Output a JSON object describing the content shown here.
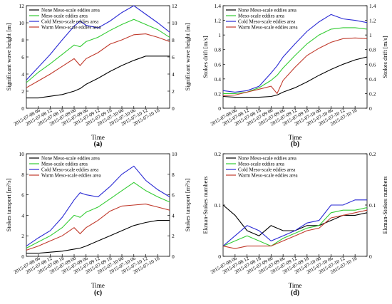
{
  "figure": {
    "tick_labels": [
      "2015-07-08 06",
      "2015-07-08 12",
      "2015-07-08 18",
      "2015-07-09 00",
      "2015-07-09 06",
      "2015-07-09 12",
      "2015-07-09 18",
      "2015-07-10 00",
      "2015-07-10 06",
      "2015-07-10 12",
      "2015-07-10 18"
    ],
    "colors": {
      "none": "#000000",
      "meso": "#33cc33",
      "cold": "#2a2ad4",
      "warm": "#c0392b"
    }
  },
  "chart_data": [
    {
      "type": "line",
      "panel_label": "(a)",
      "xlabel": "Time",
      "ylabel_left": "Significant wave height [m]",
      "ylabel_right": "Significant wave height [m]",
      "xlim": [
        "2015-07-08 00",
        "2015-07-11 00"
      ],
      "ylim": [
        0,
        12
      ],
      "y_ticks": [
        "0",
        "2",
        "4",
        "6",
        "8",
        "10",
        "12"
      ],
      "legend": "top-left",
      "x": [
        "2015-07-08 00",
        "2015-07-08 06",
        "2015-07-08 12",
        "2015-07-08 18",
        "2015-07-09 00",
        "2015-07-09 03",
        "2015-07-09 06",
        "2015-07-09 12",
        "2015-07-09 18",
        "2015-07-10 00",
        "2015-07-10 06",
        "2015-07-10 12",
        "2015-07-10 18",
        "2015-07-11 00"
      ],
      "series": [
        {
          "name": "None Meso-scale eddies area",
          "color": "#000000",
          "values": [
            1.2,
            1.2,
            1.4,
            1.6,
            2.0,
            2.3,
            2.8,
            3.5,
            4.3,
            5.0,
            5.6,
            6.1,
            6.1,
            6.1
          ]
        },
        {
          "name": "Meso-scale eddies area",
          "color": "#33cc33",
          "values": [
            3.0,
            4.2,
            5.2,
            6.3,
            7.4,
            7.2,
            7.8,
            8.3,
            9.1,
            9.8,
            10.4,
            9.8,
            9.2,
            8.3
          ]
        },
        {
          "name": "Cold Meso-scale eddies area",
          "color": "#2a2ad4",
          "values": [
            3.3,
            4.8,
            6.3,
            8.0,
            9.6,
            10.2,
            9.7,
            9.4,
            10.2,
            11.2,
            12.0,
            11.0,
            10.0,
            8.9
          ]
        },
        {
          "name": "Warm Meso-scale eddies area",
          "color": "#c0392b",
          "values": [
            2.4,
            3.2,
            4.0,
            4.9,
            5.8,
            5.0,
            5.8,
            6.5,
            7.5,
            8.0,
            8.6,
            8.7,
            8.3,
            7.8
          ]
        }
      ]
    },
    {
      "type": "line",
      "panel_label": "(b)",
      "xlabel": "Time",
      "ylabel_left": "Stokes drift [m/s]",
      "ylabel_right": "Stokes drift [m/s]",
      "xlim": [
        "2015-07-08 00",
        "2015-07-11 00"
      ],
      "ylim": [
        0,
        1.4
      ],
      "y_ticks": [
        "0",
        "0.2",
        "0.4",
        "0.6",
        "0.8",
        "1",
        "1.2",
        "1.4"
      ],
      "legend": "top-left",
      "x": [
        "2015-07-08 00",
        "2015-07-08 06",
        "2015-07-08 12",
        "2015-07-08 18",
        "2015-07-09 00",
        "2015-07-09 03",
        "2015-07-09 06",
        "2015-07-09 12",
        "2015-07-09 18",
        "2015-07-10 00",
        "2015-07-10 06",
        "2015-07-10 12",
        "2015-07-10 18",
        "2015-07-11 00"
      ],
      "series": [
        {
          "name": "None Meso-scale eddies area",
          "color": "#000000",
          "values": [
            0.16,
            0.15,
            0.15,
            0.15,
            0.16,
            0.18,
            0.22,
            0.28,
            0.36,
            0.45,
            0.53,
            0.6,
            0.66,
            0.7
          ]
        },
        {
          "name": "Meso-scale eddies area",
          "color": "#33cc33",
          "values": [
            0.2,
            0.2,
            0.22,
            0.28,
            0.38,
            0.45,
            0.55,
            0.72,
            0.88,
            1.0,
            1.08,
            1.1,
            1.1,
            1.08
          ]
        },
        {
          "name": "Cold Meso-scale eddies area",
          "color": "#2a2ad4",
          "values": [
            0.24,
            0.22,
            0.24,
            0.3,
            0.48,
            0.58,
            0.7,
            0.88,
            1.05,
            1.18,
            1.28,
            1.22,
            1.2,
            1.17
          ]
        },
        {
          "name": "Warm Meso-scale eddies area",
          "color": "#c0392b",
          "values": [
            0.17,
            0.18,
            0.22,
            0.26,
            0.3,
            0.2,
            0.38,
            0.56,
            0.72,
            0.82,
            0.9,
            0.95,
            0.96,
            0.95
          ]
        }
      ]
    },
    {
      "type": "line",
      "panel_label": "(c)",
      "xlabel": "Time",
      "ylabel_left": "Stokes tansport [m²/s]",
      "ylabel_right": "Stokes tansport [m²/s]",
      "xlim": [
        "2015-07-08 00",
        "2015-07-11 00"
      ],
      "ylim": [
        0,
        10
      ],
      "y_ticks": [
        "0",
        "2",
        "4",
        "6",
        "8",
        "10"
      ],
      "legend": "top-left",
      "x": [
        "2015-07-08 00",
        "2015-07-08 06",
        "2015-07-08 12",
        "2015-07-08 18",
        "2015-07-09 00",
        "2015-07-09 03",
        "2015-07-09 06",
        "2015-07-09 12",
        "2015-07-09 18",
        "2015-07-10 00",
        "2015-07-10 06",
        "2015-07-10 12",
        "2015-07-10 18",
        "2015-07-11 00"
      ],
      "series": [
        {
          "name": "None Meso-scale eddies area",
          "color": "#000000",
          "values": [
            0.3,
            0.3,
            0.4,
            0.5,
            0.7,
            0.8,
            1.0,
            1.5,
            2.0,
            2.5,
            3.0,
            3.3,
            3.5,
            3.5
          ]
        },
        {
          "name": "Meso-scale eddies area",
          "color": "#33cc33",
          "values": [
            0.8,
            1.4,
            2.0,
            2.8,
            4.0,
            3.8,
            4.3,
            4.8,
            5.6,
            6.4,
            7.2,
            6.4,
            5.8,
            5.3
          ]
        },
        {
          "name": "Cold Meso-scale eddies area",
          "color": "#2a2ad4",
          "values": [
            1.0,
            1.8,
            2.5,
            3.8,
            5.5,
            6.2,
            6.0,
            5.8,
            6.8,
            8.0,
            8.8,
            7.4,
            6.5,
            5.8
          ]
        },
        {
          "name": "Warm Meso-scale eddies area",
          "color": "#c0392b",
          "values": [
            0.6,
            1.0,
            1.5,
            2.0,
            2.8,
            2.2,
            2.8,
            3.5,
            4.4,
            4.9,
            5.0,
            5.1,
            4.8,
            4.5
          ]
        }
      ]
    },
    {
      "type": "line",
      "panel_label": "(d)",
      "xlabel": "Time",
      "ylabel_left": "Ekman-Stokes numbers",
      "ylabel_right": "Ekman-Stokes numbers",
      "xlim": [
        "2015-07-08 00",
        "2015-07-11 00"
      ],
      "ylim": [
        0,
        0.2
      ],
      "y_ticks": [
        "0",
        "0.1",
        "0.2"
      ],
      "legend": "top-left",
      "x": [
        "2015-07-08 00",
        "2015-07-08 06",
        "2015-07-08 12",
        "2015-07-08 18",
        "2015-07-09 00",
        "2015-07-09 06",
        "2015-07-09 12",
        "2015-07-09 18",
        "2015-07-10 00",
        "2015-07-10 06",
        "2015-07-10 12",
        "2015-07-10 18",
        "2015-07-11 00"
      ],
      "series": [
        {
          "name": "None Meso-scale eddies area",
          "color": "#000000",
          "values": [
            0.1,
            0.08,
            0.05,
            0.04,
            0.06,
            0.05,
            0.05,
            0.06,
            0.06,
            0.07,
            0.08,
            0.08,
            0.085
          ]
        },
        {
          "name": "Meso-scale eddies area",
          "color": "#33cc33",
          "values": [
            0.02,
            0.03,
            0.04,
            0.03,
            0.02,
            0.035,
            0.045,
            0.055,
            0.06,
            0.085,
            0.09,
            0.09,
            0.095
          ]
        },
        {
          "name": "Cold Meso-scale eddies area",
          "color": "#2a2ad4",
          "values": [
            0.02,
            0.04,
            0.06,
            0.05,
            0.03,
            0.04,
            0.05,
            0.065,
            0.07,
            0.1,
            0.1,
            0.11,
            0.11
          ]
        },
        {
          "name": "Warm Meso-scale eddies area",
          "color": "#c0392b",
          "values": [
            0.02,
            0.015,
            0.02,
            0.02,
            0.02,
            0.03,
            0.04,
            0.05,
            0.055,
            0.075,
            0.08,
            0.085,
            0.09
          ]
        }
      ]
    }
  ]
}
